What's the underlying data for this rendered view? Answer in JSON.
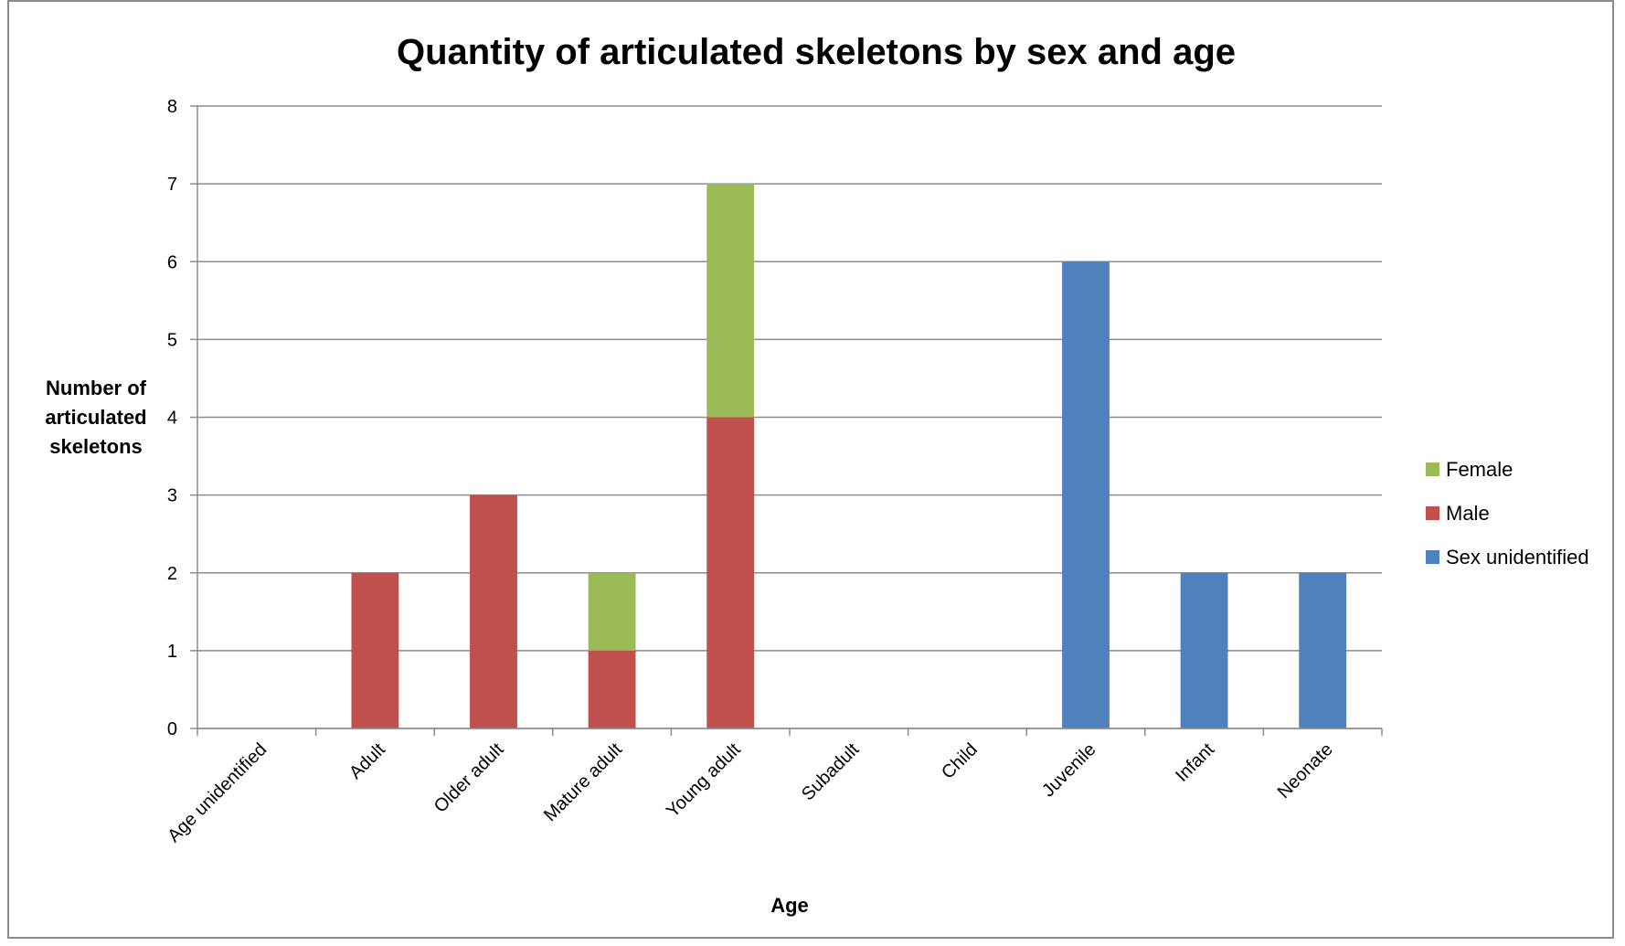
{
  "chart_data": {
    "type": "bar",
    "stacked": true,
    "title": "Quantity of articulated skeletons by sex and age",
    "xlabel": "Age",
    "ylabel": "Number of articulated skeletons",
    "ylabel_lines": [
      "Number of",
      "articulated",
      "skeletons"
    ],
    "ylim": [
      0,
      8
    ],
    "yticks": [
      "0",
      "1",
      "2",
      "3",
      "4",
      "5",
      "6",
      "7",
      "8"
    ],
    "grid": true,
    "legend_position": "right",
    "categories": [
      "Age unidentified",
      "Adult",
      "Older adult",
      "Mature adult",
      "Young adult",
      "Subadult",
      "Child",
      "Juvenile",
      "Infant",
      "Neonate"
    ],
    "series": [
      {
        "name": "Sex unidentified",
        "color": "#4F81BD",
        "values": [
          0,
          0,
          0,
          0,
          0,
          0,
          0,
          6,
          2,
          2
        ]
      },
      {
        "name": "Male",
        "color": "#C0504D",
        "values": [
          0,
          2,
          3,
          1,
          4,
          0,
          0,
          0,
          0,
          0
        ]
      },
      {
        "name": "Female",
        "color": "#9BBB59",
        "values": [
          0,
          0,
          0,
          1,
          3,
          0,
          0,
          0,
          0,
          0
        ]
      }
    ],
    "legend_order": [
      "Female",
      "Male",
      "Sex unidentified"
    ]
  }
}
